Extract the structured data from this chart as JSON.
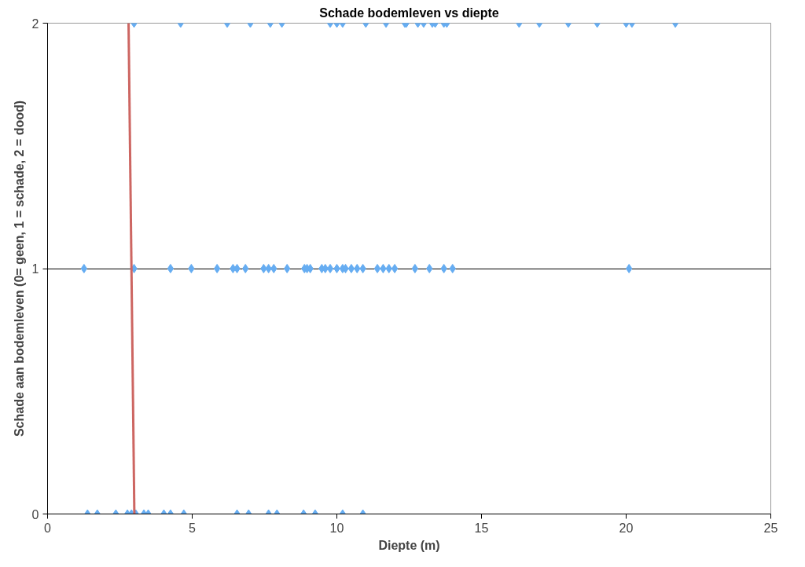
{
  "chart_data": {
    "type": "scatter",
    "title": "Schade bodemleven vs diepte",
    "xlabel": "Diepte (m)",
    "ylabel": "Schade aan bodemleven (0= geen, 1 = schade, 2 = dood)",
    "xlim": [
      0,
      25
    ],
    "xticks": [
      0,
      5,
      10,
      15,
      20,
      25
    ],
    "ylim": [
      0,
      2
    ],
    "yticks": [
      0,
      1,
      2
    ],
    "grid": "y",
    "marker": "diamond",
    "series": [
      {
        "color": "#66adf2",
        "x": [
          2.99,
          4.6,
          6.21,
          7.01,
          7.7,
          8.1,
          9.77,
          10.0,
          10.2,
          11.0,
          11.7,
          12.35,
          12.4,
          12.8,
          13.0,
          13.3,
          13.4,
          13.7,
          13.8,
          16.3,
          17.0,
          18.0,
          19.0,
          20.0,
          20.2,
          21.7
        ],
        "values": [
          2,
          2,
          2,
          2,
          2,
          2,
          2,
          2,
          2,
          2,
          2,
          2,
          2,
          2,
          2,
          2,
          2,
          2,
          2,
          2,
          2,
          2,
          2,
          2,
          2,
          2
        ]
      },
      {
        "color": "#66adf2",
        "x": [
          1.26,
          2.99,
          4.25,
          4.97,
          5.86,
          6.41,
          6.55,
          6.84,
          7.47,
          7.64,
          7.82,
          8.28,
          8.88,
          8.97,
          9.08,
          9.48,
          9.6,
          9.77,
          10.0,
          10.2,
          10.3,
          10.5,
          10.7,
          10.9,
          11.4,
          11.6,
          11.8,
          12.0,
          12.7,
          13.2,
          13.7,
          14.0,
          20.1
        ],
        "values": [
          1,
          1,
          1,
          1,
          1,
          1,
          1,
          1,
          1,
          1,
          1,
          1,
          1,
          1,
          1,
          1,
          1,
          1,
          1,
          1,
          1,
          1,
          1,
          1,
          1,
          1,
          1,
          1,
          1,
          1,
          1,
          1,
          1
        ]
      },
      {
        "color": "#66adf2",
        "x": [
          1.38,
          1.72,
          2.36,
          2.76,
          2.9,
          3.05,
          3.33,
          3.48,
          4.02,
          4.25,
          4.71,
          6.55,
          6.95,
          7.64,
          7.93,
          8.85,
          9.25,
          10.2,
          10.9
        ],
        "values": [
          0,
          0,
          0,
          0,
          0,
          0,
          0,
          0,
          0,
          0,
          0,
          0,
          0,
          0,
          0,
          0,
          0,
          0,
          0
        ]
      },
      {
        "type": "line",
        "color": "#cd6662",
        "x": [
          2.8,
          3.0
        ],
        "values": [
          2,
          0
        ],
        "marker": "none"
      }
    ]
  }
}
